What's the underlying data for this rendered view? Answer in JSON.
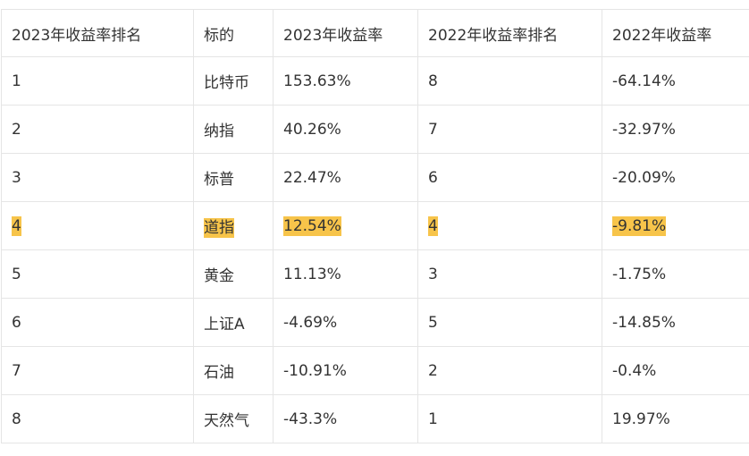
{
  "table": {
    "headers": [
      "2023年收益率排名",
      "标的",
      "2023年收益率",
      "2022年收益率排名",
      "2022年收益率"
    ],
    "rows": [
      {
        "cells": [
          "1",
          "比特币",
          "153.63%",
          "8",
          "-64.14%"
        ],
        "highlighted": false
      },
      {
        "cells": [
          "2",
          "纳指",
          "40.26%",
          "7",
          "-32.97%"
        ],
        "highlighted": false
      },
      {
        "cells": [
          "3",
          "标普",
          "22.47%",
          "6",
          "-20.09%"
        ],
        "highlighted": false
      },
      {
        "cells": [
          "4",
          "道指",
          "12.54%",
          "4",
          "-9.81%"
        ],
        "highlighted": true
      },
      {
        "cells": [
          "5",
          "黄金",
          "11.13%",
          "3",
          "-1.75%"
        ],
        "highlighted": false
      },
      {
        "cells": [
          "6",
          "上证A",
          "-4.69%",
          "5",
          "-14.85%"
        ],
        "highlighted": false
      },
      {
        "cells": [
          "7",
          "石油",
          "-10.91%",
          "2",
          "-0.4%"
        ],
        "highlighted": false
      },
      {
        "cells": [
          "8",
          "天然气",
          "-43.3%",
          "1",
          "19.97%"
        ],
        "highlighted": false
      }
    ]
  },
  "colors": {
    "highlight": "#f7c44a",
    "border": "#e5e5e5",
    "text": "#333333"
  }
}
